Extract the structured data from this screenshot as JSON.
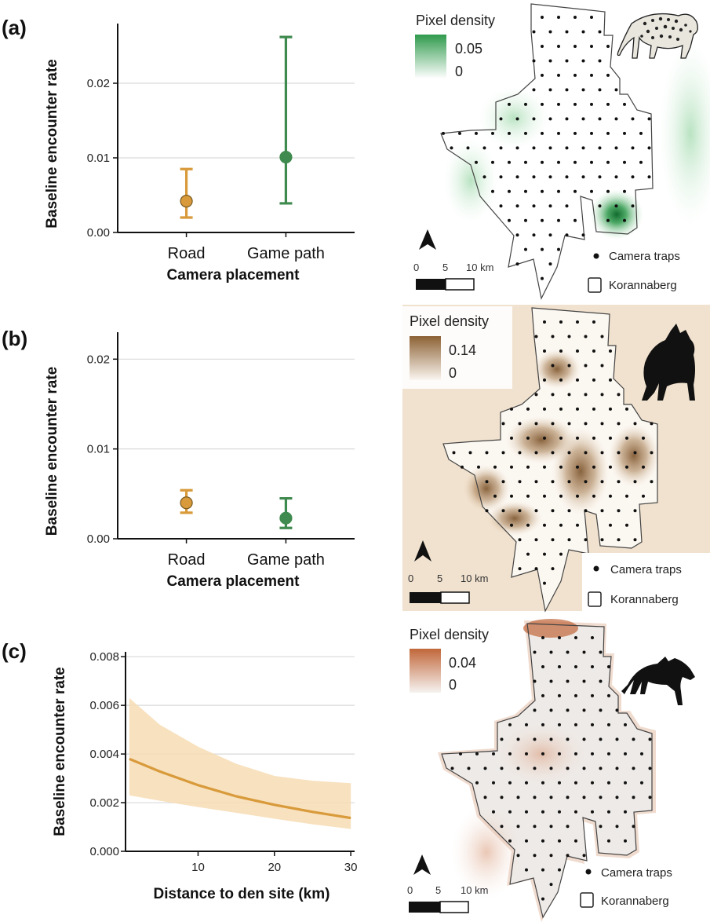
{
  "colors": {
    "road": "#d89a3a",
    "game_path": "#3f8a4e",
    "leopard_map": "#2f9a4c",
    "brown_hyena_map": "#8c6235",
    "spotted_hyena_map": "#c1673a",
    "grid": "#d9d9d9"
  },
  "chart_data": [
    {
      "panel": "(a)",
      "type": "scatter",
      "title": "",
      "xlabel": "Camera placement",
      "ylabel": "Baseline encounter rate",
      "categories": [
        "Road",
        "Game path"
      ],
      "series": [
        {
          "category": "Road",
          "estimate": 0.0042,
          "lower": 0.002,
          "upper": 0.0085,
          "color": "#d89a3a"
        },
        {
          "category": "Game path",
          "estimate": 0.0101,
          "lower": 0.0039,
          "upper": 0.0262,
          "color": "#3f8a4e"
        }
      ],
      "ylim": [
        0,
        0.028
      ],
      "yticks": [
        0,
        0.01,
        0.02
      ],
      "ytick_labels": [
        "0.00",
        "0.01",
        "0.02"
      ],
      "grid": true
    },
    {
      "panel": "(b)",
      "type": "scatter",
      "title": "",
      "xlabel": "Camera placement",
      "ylabel": "Baseline encounter rate",
      "categories": [
        "Road",
        "Game path"
      ],
      "series": [
        {
          "category": "Road",
          "estimate": 0.004,
          "lower": 0.0029,
          "upper": 0.0054,
          "color": "#d89a3a"
        },
        {
          "category": "Game path",
          "estimate": 0.0023,
          "lower": 0.0012,
          "upper": 0.0045,
          "color": "#3f8a4e"
        }
      ],
      "ylim": [
        0,
        0.023
      ],
      "yticks": [
        0,
        0.01,
        0.02
      ],
      "ytick_labels": [
        "0.00",
        "0.01",
        "0.02"
      ],
      "grid": true
    },
    {
      "panel": "(c)",
      "type": "line",
      "title": "",
      "xlabel": "Distance to den site (km)",
      "ylabel": "Baseline encounter rate",
      "x": [
        1,
        5,
        10,
        15,
        20,
        25,
        30
      ],
      "y": [
        0.0038,
        0.00328,
        0.00272,
        0.00226,
        0.00191,
        0.00162,
        0.00137
      ],
      "lower": [
        0.0023,
        0.00208,
        0.00182,
        0.00158,
        0.00134,
        0.00111,
        0.00092
      ],
      "upper": [
        0.0063,
        0.0052,
        0.0043,
        0.0036,
        0.0031,
        0.0029,
        0.0028
      ],
      "xlim": [
        0.5,
        30.5
      ],
      "ylim": [
        0,
        0.0082
      ],
      "xticks": [
        10,
        20,
        30
      ],
      "yticks": [
        0,
        0.002,
        0.004,
        0.006,
        0.008
      ],
      "ytick_labels": [
        "0.000",
        "0.002",
        "0.004",
        "0.006",
        "0.008"
      ],
      "grid": true,
      "color": "#d89a3a"
    }
  ],
  "maps": [
    {
      "panel": "(a)",
      "legend_title": "Pixel density",
      "legend_max": "0.05",
      "legend_min": "0",
      "scale_labels": [
        "0",
        "5",
        "10 km"
      ],
      "key_camera": "Camera traps",
      "key_area": "Korannaberg",
      "animal": "leopard-icon"
    },
    {
      "panel": "(b)",
      "legend_title": "Pixel density",
      "legend_max": "0.14",
      "legend_min": "0",
      "scale_labels": [
        "0",
        "5",
        "10 km"
      ],
      "key_camera": "Camera traps",
      "key_area": "Korannaberg",
      "animal": "brown-hyena-icon"
    },
    {
      "panel": "(c)",
      "legend_title": "Pixel density",
      "legend_max": "0.04",
      "legend_min": "0",
      "scale_labels": [
        "0",
        "5",
        "10 km"
      ],
      "key_camera": "Camera traps",
      "key_area": "Korannaberg",
      "animal": "spotted-hyena-icon"
    }
  ]
}
